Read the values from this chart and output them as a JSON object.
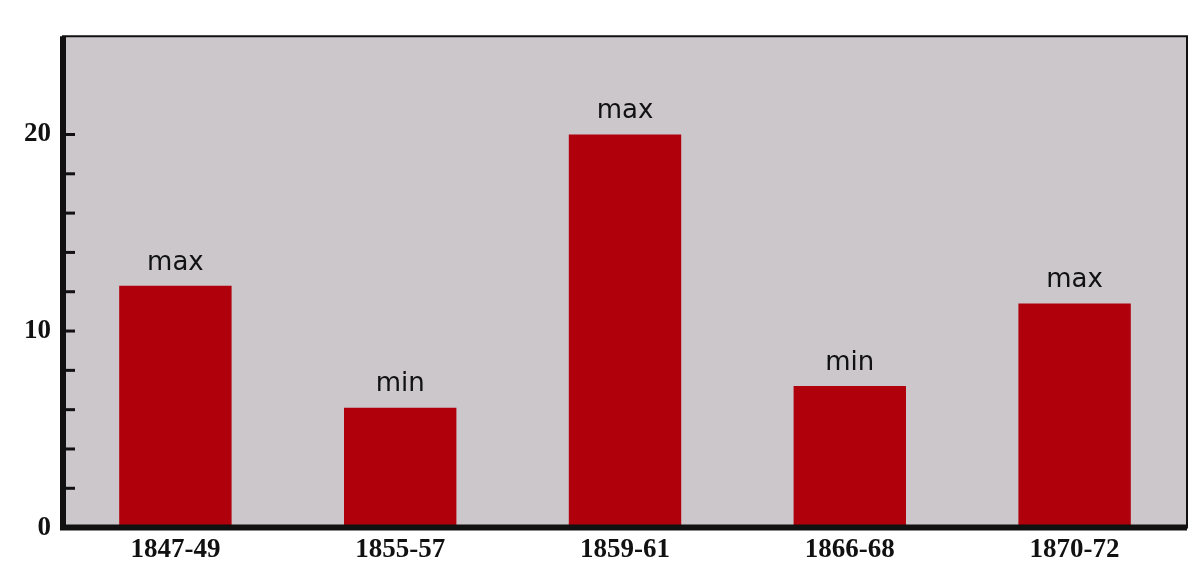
{
  "chart_data": {
    "type": "bar",
    "categories": [
      "1847-49",
      "1855-57",
      "1859-61",
      "1866-68",
      "1870-72"
    ],
    "values": [
      12.3,
      6.1,
      20,
      7.2,
      11.4
    ],
    "color": "#b0000c",
    "value_labels": [
      "max",
      "min",
      "max",
      "min",
      "max"
    ],
    "ylim": [
      0,
      25
    ],
    "yticks": [
      0,
      {
        "value": 2,
        "label": null
      },
      {
        "value": 4,
        "label": null
      },
      {
        "value": 6,
        "label": null
      },
      {
        "value": 8,
        "label": null
      },
      10,
      {
        "value": 12,
        "label": null
      },
      {
        "value": 14,
        "label": null
      },
      {
        "value": 16,
        "label": null
      },
      {
        "value": 18,
        "label": null
      },
      20
    ],
    "grid": false,
    "legend": false
  }
}
